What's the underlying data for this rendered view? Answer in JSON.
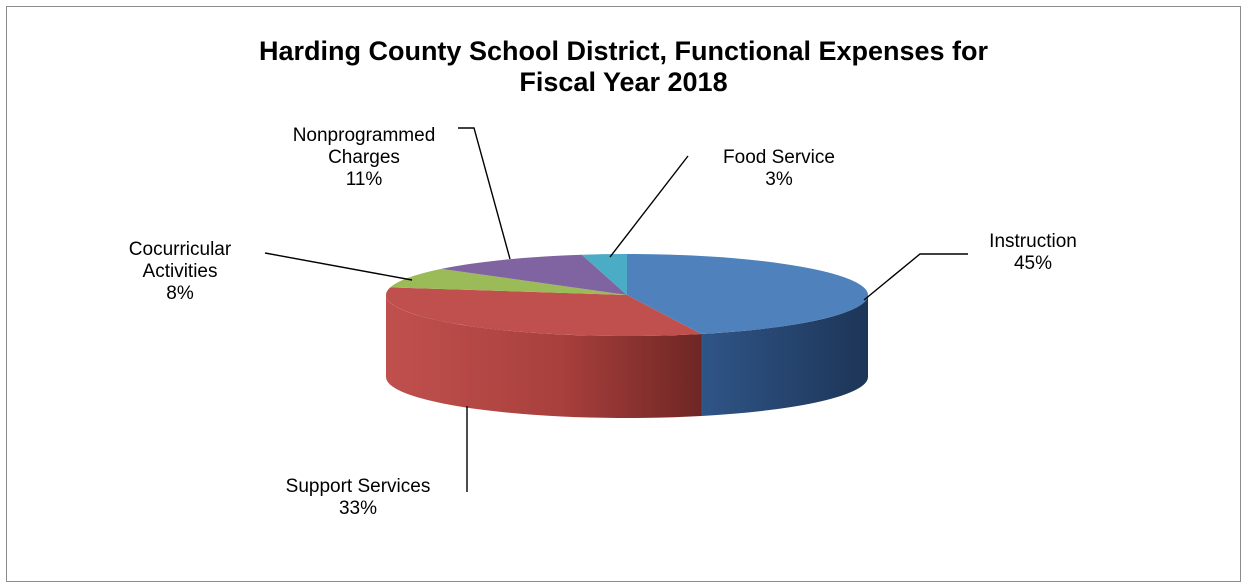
{
  "chart_data": {
    "type": "pie",
    "style": "3d",
    "title_lines": [
      "Harding County School District, Functional Expenses for",
      "Fiscal Year 2018"
    ],
    "slices": [
      {
        "label_lines": [
          "Instruction"
        ],
        "pct": "45%",
        "value": 45,
        "color": "#4f81bd"
      },
      {
        "label_lines": [
          "Support Services"
        ],
        "pct": "33%",
        "value": 33,
        "color": "#c0504d"
      },
      {
        "label_lines": [
          "Cocurricular",
          "Activities"
        ],
        "pct": "8%",
        "value": 8,
        "color": "#9bbb59"
      },
      {
        "label_lines": [
          "Nonprogrammed",
          "Charges"
        ],
        "pct": "11%",
        "value": 11,
        "color": "#8064a2"
      },
      {
        "label_lines": [
          "Food Service"
        ],
        "pct": "3%",
        "value": 3,
        "color": "#4bacc6"
      }
    ]
  }
}
